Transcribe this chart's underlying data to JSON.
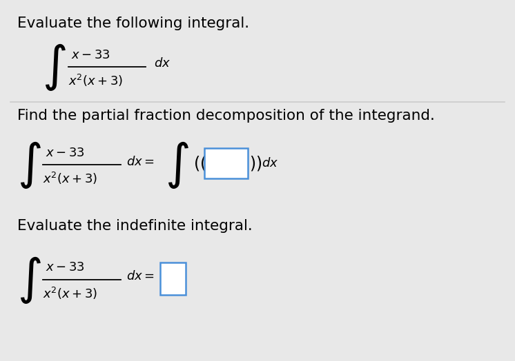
{
  "background_color": "#e8e8e8",
  "content_bg": "#ffffff",
  "title1": "Evaluate the following integral.",
  "title2": "Find the partial fraction decomposition of the integrand.",
  "title3": "Evaluate the indefinite integral.",
  "font_color": "#000000",
  "box_color": "#4a90d9",
  "divider_color": "#cccccc",
  "font_size_title": 15.5,
  "font_size_math": 13,
  "font_size_integral": 36
}
